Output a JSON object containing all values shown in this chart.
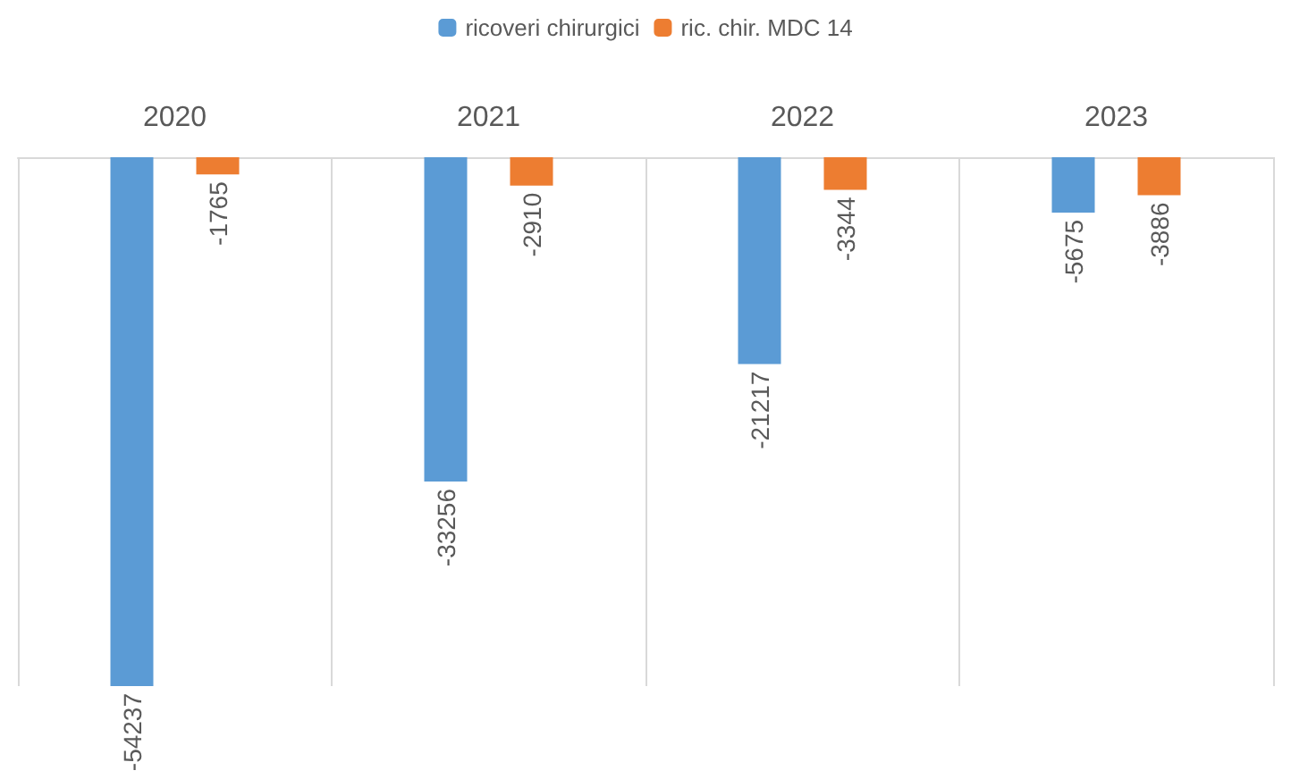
{
  "chart_data": {
    "type": "bar",
    "categories": [
      "2020",
      "2021",
      "2022",
      "2023"
    ],
    "series": [
      {
        "name": "ricoveri chirurgici",
        "color": "#5b9bd5",
        "values": [
          -54237,
          -33256,
          -21217,
          -5675
        ]
      },
      {
        "name": "ric. chir. MDC 14",
        "color": "#ed7d31",
        "values": [
          -1765,
          -2910,
          -3344,
          -3886
        ]
      }
    ],
    "data_labels": true,
    "grid": "x",
    "legend": "top"
  }
}
